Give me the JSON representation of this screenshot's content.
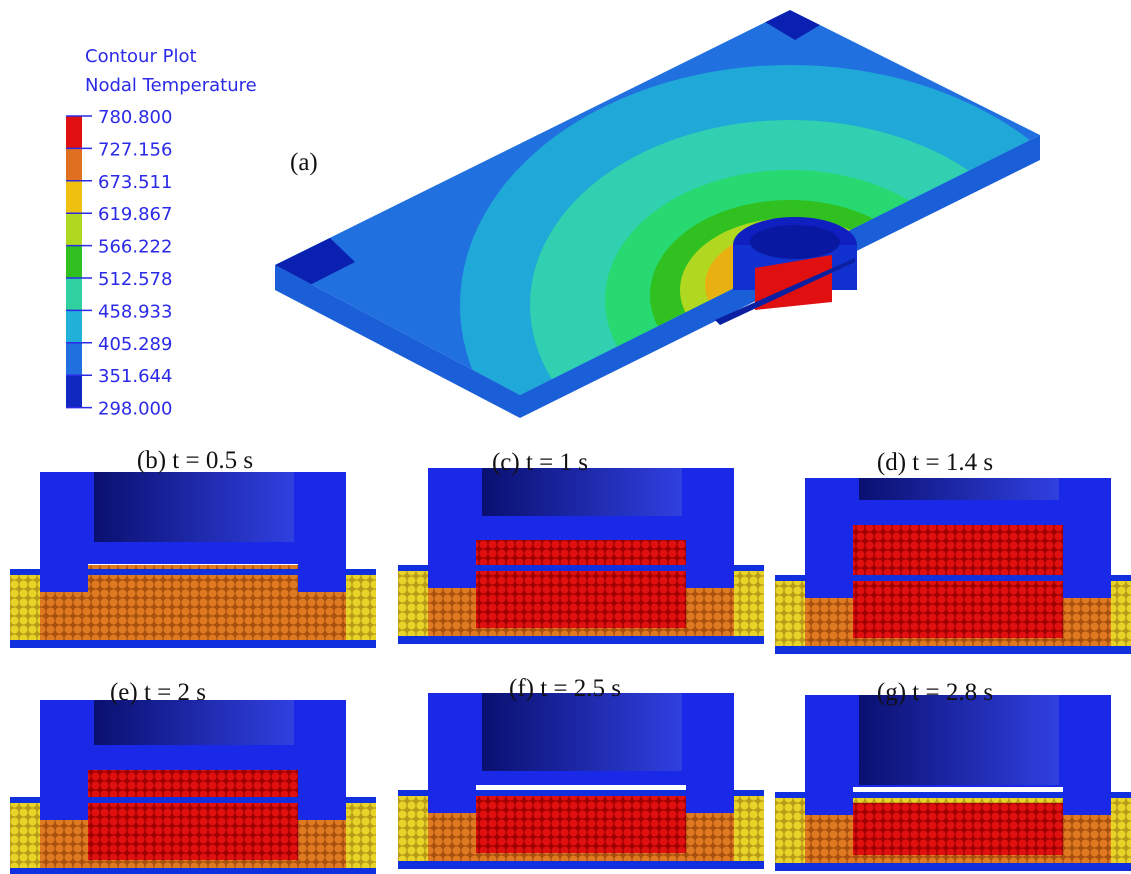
{
  "legend": {
    "title": [
      "Contour Plot",
      "Nodal Temperature"
    ],
    "levels": [
      "780.800",
      "727.156",
      "673.511",
      "619.867",
      "566.222",
      "512.578",
      "458.933",
      "405.289",
      "351.644",
      "298.000"
    ]
  },
  "panels": [
    {
      "label": "(a)"
    },
    {
      "label": "(b) t = 0.5 s"
    },
    {
      "label": "(c)  t = 1 s"
    },
    {
      "label": "(d)  t = 1.4 s"
    },
    {
      "label": "(e)   t = 2 s"
    },
    {
      "label": "(f)  t = 2.5 s"
    },
    {
      "label": "(g)  t = 2.8 s"
    }
  ]
}
